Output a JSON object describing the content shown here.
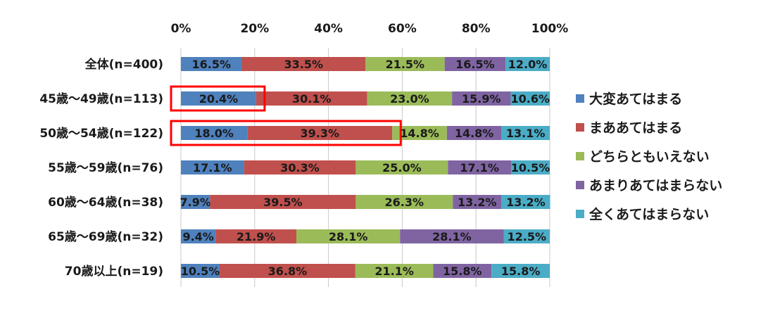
{
  "chart_data": {
    "type": "bar",
    "orientation": "horizontal",
    "stacked": true,
    "percent": true,
    "xlim": [
      0,
      100
    ],
    "x_ticks": [
      "0%",
      "20%",
      "40%",
      "60%",
      "80%",
      "100%"
    ],
    "categories": [
      "全体(n=400)",
      "45歳～49歳(n=113)",
      "50歳～54歳(n=122)",
      "55歳～59歳(n=76)",
      "60歳～64歳(n=38)",
      "65歳～69歳(n=32)",
      "70歳以上(n=19)"
    ],
    "series": [
      {
        "name": "大変あてはまる",
        "color": "#4f81bd",
        "values": [
          16.5,
          20.4,
          18.0,
          17.1,
          7.9,
          9.4,
          10.5
        ]
      },
      {
        "name": "まああてはまる",
        "color": "#c0504d",
        "values": [
          33.5,
          30.1,
          39.3,
          30.3,
          39.5,
          21.9,
          36.8
        ]
      },
      {
        "name": "どちらともいえない",
        "color": "#9bbb59",
        "values": [
          21.5,
          23.0,
          14.8,
          25.0,
          26.3,
          28.1,
          21.1
        ]
      },
      {
        "name": "あまりあてはまらない",
        "color": "#8064a2",
        "values": [
          16.5,
          15.9,
          14.8,
          17.1,
          13.2,
          28.1,
          15.8
        ]
      },
      {
        "name": "全くあてはまらない",
        "color": "#4bacc6",
        "values": [
          12.0,
          10.6,
          13.1,
          10.5,
          13.2,
          12.5,
          15.8
        ]
      }
    ],
    "grid": true,
    "legend_position": "right",
    "highlights": [
      {
        "category_index": 1,
        "series_from": 0,
        "series_to": 0,
        "color": "#ff0000"
      },
      {
        "category_index": 2,
        "series_from": 0,
        "series_to": 1,
        "color": "#ff0000"
      }
    ]
  }
}
